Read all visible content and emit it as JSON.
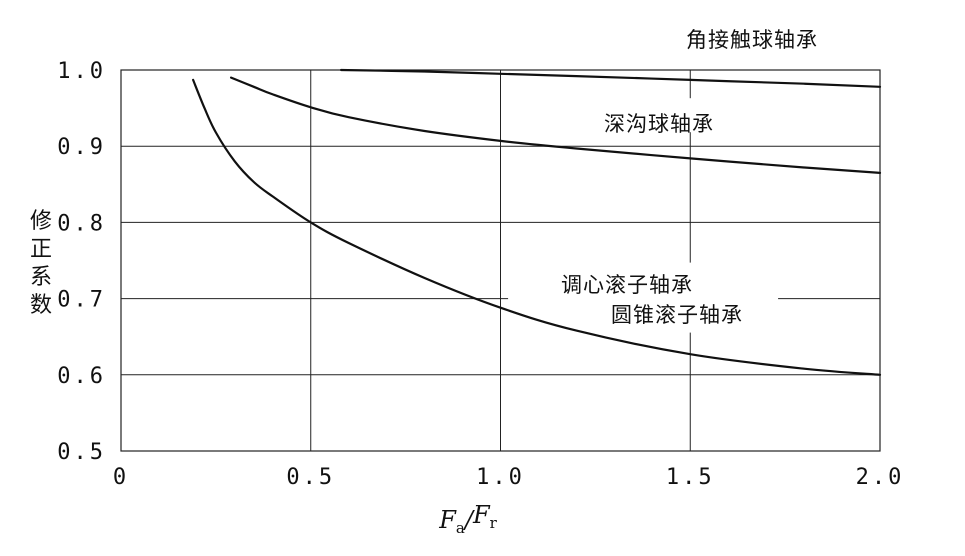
{
  "chart_data": {
    "type": "line",
    "title": "",
    "xlabel": {
      "main1": "F",
      "sub1": "a",
      "sep": "/",
      "main2": "F",
      "sub2": "r"
    },
    "ylabel": [
      "修",
      "正",
      "系",
      "数"
    ],
    "xlim": [
      0,
      2.0
    ],
    "ylim": [
      0.5,
      1.0
    ],
    "xticks": [
      0,
      0.5,
      1.0,
      1.5,
      2.0
    ],
    "xtick_labels": [
      "0",
      "0.5",
      "1.0",
      "1.5",
      "2.0"
    ],
    "yticks": [
      0.5,
      0.6,
      0.7,
      0.8,
      0.9,
      1.0
    ],
    "ytick_labels": [
      "0.5",
      "0.6",
      "0.7",
      "0.8",
      "0.9",
      "1.0"
    ],
    "grid": true,
    "series": [
      {
        "name": "角接触球轴承",
        "x": [
          0.58,
          0.8,
          1.0,
          1.2,
          1.5,
          1.8,
          2.0
        ],
        "y": [
          1.0,
          0.998,
          0.995,
          0.992,
          0.987,
          0.982,
          0.978
        ]
      },
      {
        "name": "深沟球轴承",
        "x": [
          0.29,
          0.35,
          0.4,
          0.5,
          0.6,
          0.8,
          1.0,
          1.2,
          1.5,
          1.8,
          2.0
        ],
        "y": [
          0.99,
          0.978,
          0.968,
          0.951,
          0.938,
          0.92,
          0.907,
          0.897,
          0.884,
          0.872,
          0.865
        ]
      },
      {
        "name": "调心滚子轴承",
        "name2": "圆锥滚子轴承",
        "x": [
          0.19,
          0.22,
          0.25,
          0.3,
          0.35,
          0.4,
          0.5,
          0.6,
          0.8,
          1.0,
          1.2,
          1.5,
          1.8,
          2.0
        ],
        "y": [
          0.987,
          0.95,
          0.918,
          0.88,
          0.853,
          0.834,
          0.8,
          0.773,
          0.727,
          0.688,
          0.658,
          0.627,
          0.608,
          0.6
        ]
      }
    ]
  }
}
